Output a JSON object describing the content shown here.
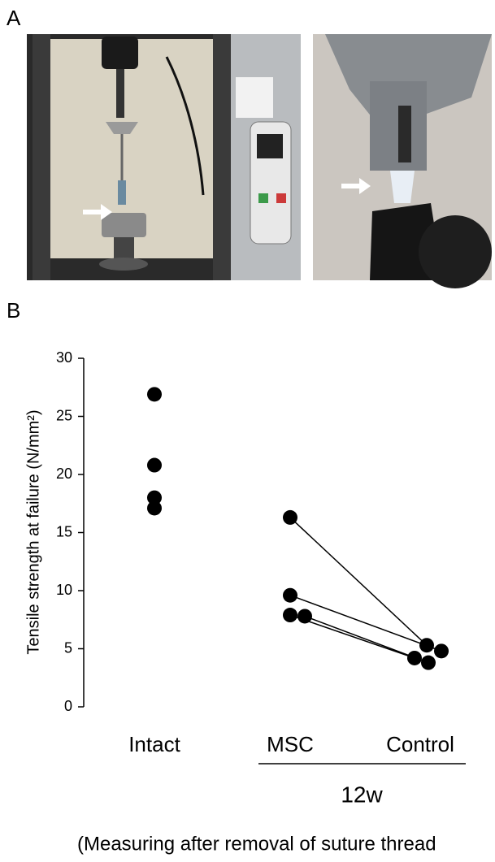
{
  "panel_labels": [
    "A",
    "B"
  ],
  "chart_data": {
    "type": "paired-strip",
    "ylabel": "Tensile strength at failure (N/mm²)",
    "categories": [
      "Intact",
      "MSC",
      "Control"
    ],
    "values": [
      [
        26.9,
        20.8,
        18.0,
        17.1
      ],
      [
        16.3,
        9.6,
        7.9,
        7.8
      ],
      [
        5.3,
        4.8,
        4.2,
        3.8
      ]
    ],
    "paired": true,
    "color": "#000000",
    "group_label": "12w",
    "note": "(Measuring after removal of suture thread",
    "ylim": [
      0,
      30
    ],
    "yticks": [
      0,
      5,
      10,
      15,
      20,
      25,
      30
    ]
  }
}
